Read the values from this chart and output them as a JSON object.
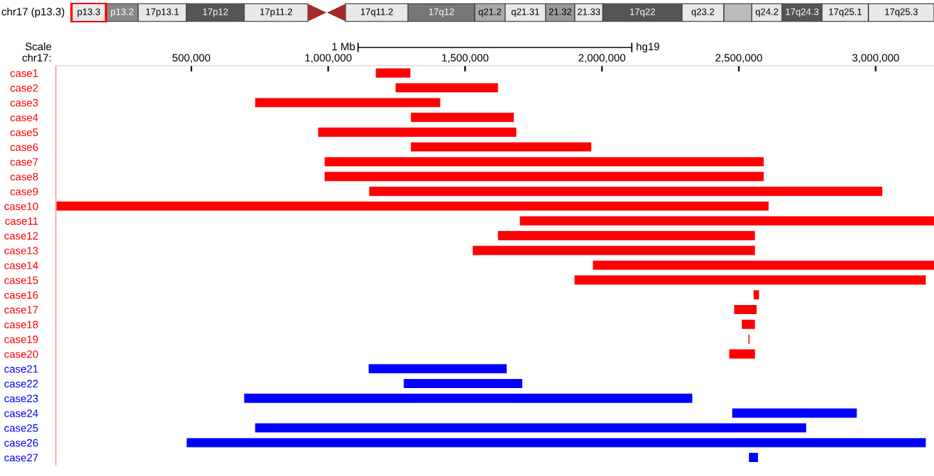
{
  "chart_data": {
    "type": "bar",
    "orientation": "horizontal",
    "categories": [
      "case1",
      "case2",
      "case3",
      "case4",
      "case5",
      "case6",
      "case7",
      "case8",
      "case9",
      "case10",
      "case11",
      "case12",
      "case13",
      "case14",
      "case15",
      "case16",
      "case17",
      "case18",
      "case19",
      "case20",
      "case21",
      "case22",
      "case23",
      "case24",
      "case25",
      "case26",
      "case27"
    ],
    "base": [
      1174000,
      1246000,
      733000,
      1302000,
      963000,
      1302000,
      987000,
      987000,
      1150000,
      5000,
      1700000,
      1620000,
      1528000,
      1967000,
      1900000,
      2554000,
      2483000,
      2511000,
      2535000,
      2465000,
      1148000,
      1276000,
      693000,
      2476000,
      733000,
      483000,
      2537000
    ],
    "values": [
      126000,
      374000,
      676000,
      376000,
      724000,
      659000,
      1604000,
      1604000,
      1874000,
      2604000,
      1513000,
      939000,
      1031000,
      1246000,
      1283000,
      20000,
      82000,
      48000,
      4000,
      94000,
      504000,
      433000,
      1637000,
      455000,
      2013000,
      2700000,
      33000
    ],
    "colors": [
      "#ff0000",
      "#ff0000",
      "#ff0000",
      "#ff0000",
      "#ff0000",
      "#ff0000",
      "#ff0000",
      "#ff0000",
      "#ff0000",
      "#ff0000",
      "#ff0000",
      "#ff0000",
      "#ff0000",
      "#ff0000",
      "#ff0000",
      "#ff0000",
      "#ff0000",
      "#ff0000",
      "#ff0000",
      "#ff0000",
      "#0000ff",
      "#0000ff",
      "#0000ff",
      "#0000ff",
      "#0000ff",
      "#0000ff",
      "#0000ff"
    ],
    "xlim": [
      5000,
      3213000
    ],
    "xticks": [
      {
        "value": 500000,
        "label": "500,000"
      },
      {
        "value": 1000000,
        "label": "1,000,000"
      },
      {
        "value": 1500000,
        "label": "1,500,000"
      },
      {
        "value": 2000000,
        "label": "2,000,000"
      },
      {
        "value": 2500000,
        "label": "2,500,000"
      },
      {
        "value": 3000000,
        "label": "3,000,000"
      }
    ],
    "ylabel": "chr17:",
    "annotations": [
      "chr17 (p13.3)",
      "Scale",
      "1 Mb",
      "hg19",
      "p13.3",
      "p13.2",
      "17p13.1",
      "17p12",
      "17p11.2",
      "17q11.2",
      "17q12",
      "q21.2",
      "q21.31",
      "21.32",
      "21.33",
      "17q22",
      "q23.2",
      "q24.2",
      "17q24.3",
      "17q25.1",
      "17q25.3"
    ],
    "grid": false,
    "legend": false
  }
}
